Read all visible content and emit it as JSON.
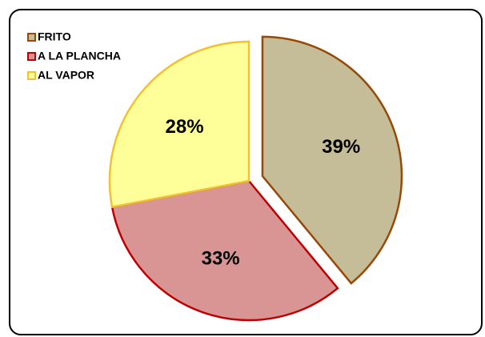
{
  "chart_data": {
    "type": "pie",
    "categories": [
      "FRITO",
      "A LA PLANCHA",
      "AL VAPOR"
    ],
    "values": [
      39,
      33,
      28
    ],
    "value_labels": [
      "39%",
      "33%",
      "28%"
    ],
    "colors": [
      "#c4bd97",
      "#d99594",
      "#ffff99"
    ],
    "edge_colors": [
      "#984807",
      "#c00000",
      "#f2c12e"
    ],
    "legend": "top-left"
  }
}
